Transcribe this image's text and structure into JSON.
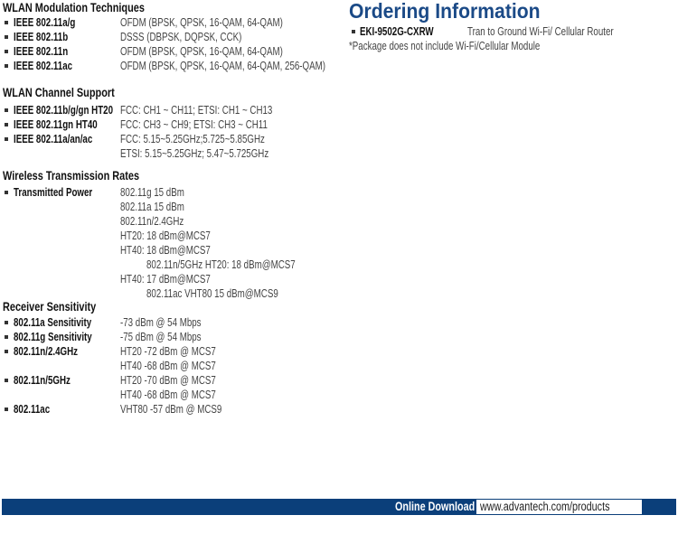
{
  "modulation": {
    "title": "WLAN Modulation Techniques",
    "items": [
      {
        "label": "IEEE 802.11a/g",
        "value": "OFDM (BPSK, QPSK, 16-QAM, 64-QAM)"
      },
      {
        "label": "IEEE 802.11b",
        "value": "DSSS (DBPSK, DQPSK, CCK)"
      },
      {
        "label": "IEEE 802.11n",
        "value": "OFDM (BPSK, QPSK, 16-QAM, 64-QAM)"
      },
      {
        "label": "IEEE 802.11ac",
        "value": "OFDM (BPSK, QPSK, 16-QAM, 64-QAM, 256-QAM)"
      }
    ]
  },
  "channel": {
    "title": "WLAN Channel Support",
    "items": [
      {
        "label": "IEEE 802.11b/g/gn HT20",
        "value": "FCC: CH1 ~ CH11; ETSI: CH1 ~ CH13"
      },
      {
        "label": "IEEE 802.11gn HT40",
        "value": "FCC: CH3 ~ CH9; ETSI: CH3 ~ CH11"
      },
      {
        "label": "IEEE 802.11a/an/ac",
        "value": "FCC: 5.15~5.25GHz;5.725~5.85GHz",
        "value2": "ETSI: 5.15~5.25GHz; 5.47~5.725GHz"
      }
    ]
  },
  "transmission": {
    "title": "Wireless Transmission Rates",
    "label": "Transmitted Power",
    "lines": [
      "802.11g 15 dBm",
      "802.11a 15 dBm",
      "802.11n/2.4GHz",
      "HT20: 18 dBm@MCS7",
      "HT40: 18 dBm@MCS7",
      "802.11n/5GHz HT20: 18 dBm@MCS7",
      "HT40: 17 dBm@MCS7",
      "802.11ac VHT80 15 dBm@MCS9"
    ]
  },
  "sensitivity": {
    "title": "Receiver Sensitivity",
    "items": [
      {
        "label": "802.11a Sensitivity",
        "value": "-73 dBm @ 54 Mbps"
      },
      {
        "label": "802.11g Sensitivity",
        "value": "-75 dBm @ 54 Mbps"
      },
      {
        "label": "802.11n/2.4GHz",
        "value": "HT20 -72 dBm @ MCS7",
        "value2": "HT40 -68 dBm @ MCS7"
      },
      {
        "label": "802.11n/5GHz",
        "value": "HT20 -70 dBm @ MCS7",
        "value2": "HT40 -68 dBm @ MCS7"
      },
      {
        "label": "802.11ac",
        "value": "VHT80 -57 dBm @ MCS9"
      }
    ]
  },
  "ordering": {
    "title": "Ordering Information",
    "items": [
      {
        "label": "EKI-9502G-CXRW",
        "value": "Tran to Ground Wi-Fi/ Cellular Router"
      }
    ],
    "note": "*Package does not include Wi-Fi/Cellular Module"
  },
  "footer": {
    "label": "Online Download",
    "url": "www.advantech.com/products",
    "bar_color": "#0b3f7a"
  }
}
